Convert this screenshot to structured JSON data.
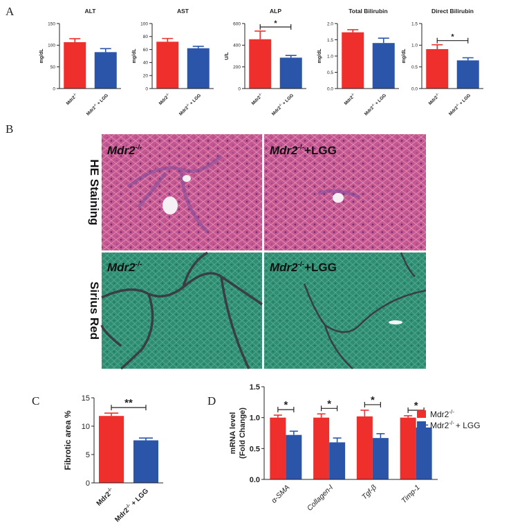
{
  "panels": {
    "A": "A",
    "B": "B",
    "C": "C",
    "D": "D"
  },
  "colors": {
    "mdr2": "#ee2f2c",
    "lgg": "#2b55a8",
    "he_stain": "#c4578f",
    "sirius_stain": "#2f8e72"
  },
  "histology": {
    "row_labels": [
      "HE Staining",
      "Sirius Red"
    ],
    "col_label_left": "Mdr2",
    "col_label_left_sup": "-/-",
    "col_label_right": "Mdr2",
    "col_label_right_sup": "-/-",
    "col_label_right_suffix": "+LGG"
  },
  "legend": {
    "items": [
      {
        "base": "Mdr2",
        "sup": "-/-",
        "suffix": "",
        "color": "#ee2f2c"
      },
      {
        "base": "Mdr2",
        "sup": "-/-",
        "suffix": "+ LGG",
        "color": "#2b55a8"
      }
    ]
  },
  "chart_data": [
    {
      "id": "A1",
      "type": "bar",
      "title": "ALT",
      "ylabel": "mg/dL",
      "ylim": [
        0,
        150
      ],
      "yticks": [
        0,
        50,
        100,
        150
      ],
      "categories": [
        "Mdr2-/-",
        "Mdr2-/- + LGG"
      ],
      "values": [
        107,
        84
      ],
      "errors": [
        8,
        8
      ],
      "significance": []
    },
    {
      "id": "A2",
      "type": "bar",
      "title": "AST",
      "ylabel": "mg/dL",
      "ylim": [
        0,
        100
      ],
      "yticks": [
        0,
        20,
        40,
        60,
        80,
        100
      ],
      "categories": [
        "Mdr2-/-",
        "Mdr2-/- + LGG"
      ],
      "values": [
        72,
        62
      ],
      "errors": [
        5,
        3
      ],
      "significance": []
    },
    {
      "id": "A3",
      "type": "bar",
      "title": "ALP",
      "ylabel": "U/L",
      "ylim": [
        0,
        600
      ],
      "yticks": [
        0,
        200,
        400,
        600
      ],
      "categories": [
        "Mdr2-/-",
        "Mdr2-/- + LGG"
      ],
      "values": [
        455,
        285
      ],
      "errors": [
        75,
        20
      ],
      "significance": [
        "*"
      ]
    },
    {
      "id": "A4",
      "type": "bar",
      "title": "Total Bilirubin",
      "ylabel": "mg/dL",
      "ylim": [
        0,
        2.0
      ],
      "yticks": [
        0.0,
        0.5,
        1.0,
        1.5,
        2.0
      ],
      "categories": [
        "Mdr2-/-",
        "Mdr2-/- + LGG"
      ],
      "values": [
        1.73,
        1.4
      ],
      "errors": [
        0.08,
        0.15
      ],
      "significance": []
    },
    {
      "id": "A5",
      "type": "bar",
      "title": "Direct Bilirubin",
      "ylabel": "mg/dL",
      "ylim": [
        0,
        1.5
      ],
      "yticks": [
        0.0,
        0.5,
        1.0,
        1.5
      ],
      "categories": [
        "Mdr2-/-",
        "Mdr2-/- + LGG"
      ],
      "values": [
        0.91,
        0.65
      ],
      "errors": [
        0.1,
        0.06
      ],
      "significance": [
        "*"
      ]
    },
    {
      "id": "C",
      "type": "bar",
      "title": "",
      "ylabel": "Fibrotic area %",
      "ylim": [
        0,
        15
      ],
      "yticks": [
        0,
        5,
        10,
        15
      ],
      "categories": [
        "Mdr2-/-",
        "Mdr2-/- + LGG"
      ],
      "values": [
        11.8,
        7.5
      ],
      "errors": [
        0.5,
        0.4
      ],
      "significance": [
        "**"
      ]
    },
    {
      "id": "D",
      "type": "bar",
      "title": "",
      "ylabel": "mRNA level",
      "ylabel2": "(Fold Change)",
      "ylim": [
        0,
        1.5
      ],
      "yticks": [
        "0.0",
        "0.5",
        "1.0",
        "1.5"
      ],
      "categories": [
        "α-SMA",
        "Collagen-I",
        "Tgf-β",
        "Timp-1"
      ],
      "series": [
        {
          "name": "Mdr2-/-",
          "values": [
            1.0,
            1.0,
            1.02,
            1.0
          ],
          "errors": [
            0.04,
            0.06,
            0.1,
            0.03
          ]
        },
        {
          "name": "Mdr2-/- + LGG",
          "values": [
            0.72,
            0.6,
            0.67,
            0.84
          ],
          "errors": [
            0.06,
            0.07,
            0.07,
            0.04
          ]
        }
      ],
      "significance": [
        "*",
        "*",
        "*",
        "*"
      ]
    }
  ]
}
